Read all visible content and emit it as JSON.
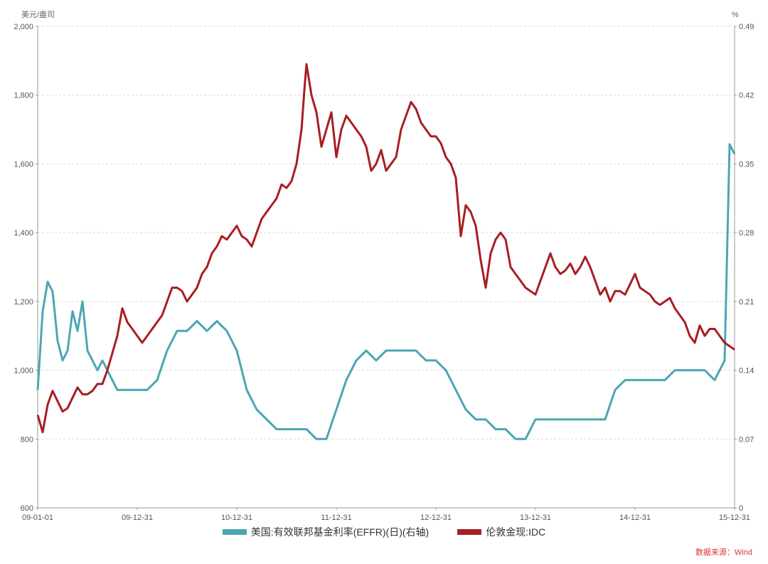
{
  "chart_data": {
    "type": "line",
    "left_axis": {
      "unit": "美元/盎司",
      "ylim": [
        600,
        2000
      ],
      "ticks": [
        "600",
        "800",
        "1,000",
        "1,200",
        "1,400",
        "1,600",
        "1,800",
        "2,000"
      ]
    },
    "right_axis": {
      "unit": "%",
      "ylim": [
        0,
        0.49
      ],
      "ticks": [
        "0",
        "0.07",
        "0.14",
        "0.21",
        "0.28",
        "0.35",
        "0.42",
        "0.49"
      ]
    },
    "x_ticks": [
      "09-01-01",
      "09-12-31",
      "10-12-31",
      "11-12-31",
      "12-12-31",
      "13-12-31",
      "14-12-31",
      "15-12-31"
    ],
    "grid": true,
    "legend_position": "bottom",
    "source": "数据来源：Wind",
    "series": [
      {
        "name": "美国:有效联邦基金利率(EFFR)(日)(右轴)",
        "axis": "right",
        "color": "#4BA6B4",
        "x": [
          2009.0,
          2009.05,
          2009.1,
          2009.15,
          2009.2,
          2009.25,
          2009.3,
          2009.35,
          2009.4,
          2009.45,
          2009.5,
          2009.55,
          2009.6,
          2009.65,
          2009.7,
          2009.75,
          2009.8,
          2009.85,
          2009.9,
          2009.95,
          2010.0,
          2010.1,
          2010.2,
          2010.3,
          2010.4,
          2010.5,
          2010.6,
          2010.7,
          2010.8,
          2010.9,
          2011.0,
          2011.1,
          2011.2,
          2011.3,
          2011.4,
          2011.5,
          2011.6,
          2011.7,
          2011.8,
          2011.9,
          2012.0,
          2012.1,
          2012.2,
          2012.3,
          2012.4,
          2012.5,
          2012.6,
          2012.7,
          2012.8,
          2012.9,
          2013.0,
          2013.1,
          2013.2,
          2013.3,
          2013.4,
          2013.5,
          2013.6,
          2013.7,
          2013.8,
          2013.9,
          2014.0,
          2014.1,
          2014.2,
          2014.3,
          2014.4,
          2014.5,
          2014.6,
          2014.7,
          2014.8,
          2014.9,
          2015.0,
          2015.1,
          2015.2,
          2015.3,
          2015.4,
          2015.5,
          2015.6,
          2015.7,
          2015.8,
          2015.9,
          2015.95,
          2016.0
        ],
        "values": [
          0.12,
          0.2,
          0.23,
          0.22,
          0.17,
          0.15,
          0.16,
          0.2,
          0.18,
          0.21,
          0.16,
          0.15,
          0.14,
          0.15,
          0.14,
          0.13,
          0.12,
          0.12,
          0.12,
          0.12,
          0.12,
          0.12,
          0.13,
          0.16,
          0.18,
          0.18,
          0.19,
          0.18,
          0.19,
          0.18,
          0.16,
          0.12,
          0.1,
          0.09,
          0.08,
          0.08,
          0.08,
          0.08,
          0.07,
          0.07,
          0.1,
          0.13,
          0.15,
          0.16,
          0.15,
          0.16,
          0.16,
          0.16,
          0.16,
          0.15,
          0.15,
          0.14,
          0.12,
          0.1,
          0.09,
          0.09,
          0.08,
          0.08,
          0.07,
          0.07,
          0.09,
          0.09,
          0.09,
          0.09,
          0.09,
          0.09,
          0.09,
          0.09,
          0.12,
          0.13,
          0.13,
          0.13,
          0.13,
          0.13,
          0.14,
          0.14,
          0.14,
          0.14,
          0.13,
          0.15,
          0.37,
          0.36
        ]
      },
      {
        "name": "伦敦金现:IDC",
        "axis": "left",
        "color": "#A81E22",
        "x": [
          2009.0,
          2009.05,
          2009.1,
          2009.15,
          2009.2,
          2009.25,
          2009.3,
          2009.35,
          2009.4,
          2009.45,
          2009.5,
          2009.55,
          2009.6,
          2009.65,
          2009.7,
          2009.75,
          2009.8,
          2009.85,
          2009.9,
          2009.95,
          2010.0,
          2010.05,
          2010.1,
          2010.15,
          2010.2,
          2010.25,
          2010.3,
          2010.35,
          2010.4,
          2010.45,
          2010.5,
          2010.55,
          2010.6,
          2010.65,
          2010.7,
          2010.75,
          2010.8,
          2010.85,
          2010.9,
          2010.95,
          2011.0,
          2011.05,
          2011.1,
          2011.15,
          2011.2,
          2011.25,
          2011.3,
          2011.35,
          2011.4,
          2011.45,
          2011.5,
          2011.55,
          2011.6,
          2011.65,
          2011.68,
          2011.7,
          2011.75,
          2011.8,
          2011.85,
          2011.9,
          2011.95,
          2012.0,
          2012.05,
          2012.1,
          2012.15,
          2012.2,
          2012.25,
          2012.3,
          2012.35,
          2012.4,
          2012.45,
          2012.5,
          2012.55,
          2012.6,
          2012.65,
          2012.7,
          2012.75,
          2012.8,
          2012.85,
          2012.9,
          2012.95,
          2013.0,
          2013.05,
          2013.1,
          2013.15,
          2013.2,
          2013.25,
          2013.3,
          2013.35,
          2013.4,
          2013.45,
          2013.5,
          2013.55,
          2013.6,
          2013.65,
          2013.7,
          2013.75,
          2013.8,
          2013.85,
          2013.9,
          2013.95,
          2014.0,
          2014.05,
          2014.1,
          2014.15,
          2014.2,
          2014.25,
          2014.3,
          2014.35,
          2014.4,
          2014.45,
          2014.5,
          2014.55,
          2014.6,
          2014.65,
          2014.7,
          2014.75,
          2014.8,
          2014.85,
          2014.9,
          2014.95,
          2015.0,
          2015.05,
          2015.1,
          2015.15,
          2015.2,
          2015.25,
          2015.3,
          2015.35,
          2015.4,
          2015.45,
          2015.5,
          2015.55,
          2015.6,
          2015.65,
          2015.7,
          2015.75,
          2015.8,
          2015.85,
          2015.9,
          2015.95,
          2016.0
        ],
        "values": [
          870,
          820,
          900,
          940,
          910,
          880,
          890,
          920,
          950,
          930,
          930,
          940,
          960,
          960,
          1000,
          1050,
          1100,
          1180,
          1140,
          1120,
          1100,
          1080,
          1100,
          1120,
          1140,
          1160,
          1200,
          1240,
          1240,
          1230,
          1200,
          1220,
          1240,
          1280,
          1300,
          1340,
          1360,
          1390,
          1380,
          1400,
          1420,
          1390,
          1380,
          1360,
          1400,
          1440,
          1460,
          1480,
          1500,
          1540,
          1530,
          1550,
          1600,
          1700,
          1820,
          1890,
          1800,
          1750,
          1650,
          1700,
          1750,
          1620,
          1700,
          1740,
          1720,
          1700,
          1680,
          1650,
          1580,
          1600,
          1640,
          1580,
          1600,
          1620,
          1700,
          1740,
          1780,
          1760,
          1720,
          1700,
          1680,
          1680,
          1660,
          1620,
          1600,
          1560,
          1390,
          1480,
          1460,
          1420,
          1320,
          1240,
          1340,
          1380,
          1400,
          1380,
          1300,
          1280,
          1260,
          1240,
          1230,
          1220,
          1260,
          1300,
          1340,
          1300,
          1280,
          1290,
          1310,
          1280,
          1300,
          1330,
          1300,
          1260,
          1220,
          1240,
          1200,
          1230,
          1230,
          1220,
          1250,
          1280,
          1240,
          1230,
          1220,
          1200,
          1190,
          1200,
          1210,
          1180,
          1160,
          1140,
          1100,
          1080,
          1130,
          1100,
          1120,
          1120,
          1100,
          1080,
          1070,
          1060
        ]
      }
    ]
  }
}
